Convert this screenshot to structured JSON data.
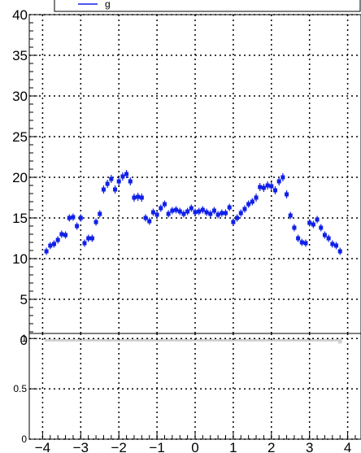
{
  "legend": {
    "text": "g"
  },
  "chart_data": [
    {
      "type": "scatter",
      "title": "",
      "xlabel": "",
      "ylabel": "",
      "xlim": [
        -4.35,
        4.35
      ],
      "ylim": [
        0,
        40
      ],
      "grid": true,
      "color": "#1020e8",
      "xticks": [
        -4,
        -3,
        -2,
        -1,
        0,
        1,
        2,
        3,
        4
      ],
      "xtick_labels": [
        "−4",
        "−3",
        "−2",
        "−1",
        "0",
        "1",
        "2",
        "3",
        "4"
      ],
      "yticks": [
        0,
        5,
        10,
        15,
        20,
        25,
        30,
        35,
        40
      ],
      "ytick_labels": [
        "0",
        "5",
        "10",
        "15",
        "20",
        "25",
        "30",
        "35",
        "40"
      ],
      "series": [
        {
          "x": [
            -3.9,
            -3.8,
            -3.7,
            -3.6,
            -3.5,
            -3.4,
            -3.3,
            -3.2,
            -3.1,
            -3.0,
            -2.9,
            -2.8,
            -2.7,
            -2.6,
            -2.5,
            -2.4,
            -2.3,
            -2.2,
            -2.1,
            -2.0,
            -1.9,
            -1.8,
            -1.7,
            -1.6,
            -1.5,
            -1.4,
            -1.3,
            -1.2,
            -1.1,
            -1.0,
            -0.9,
            -0.8,
            -0.7,
            -0.6,
            -0.5,
            -0.4,
            -0.3,
            -0.2,
            -0.1,
            0.0,
            0.1,
            0.2,
            0.3,
            0.4,
            0.5,
            0.6,
            0.7,
            0.8,
            0.9,
            1.0,
            1.1,
            1.2,
            1.3,
            1.4,
            1.5,
            1.6,
            1.7,
            1.8,
            1.9,
            2.0,
            2.1,
            2.2,
            2.3,
            2.4,
            2.5,
            2.6,
            2.7,
            2.8,
            2.9,
            3.0,
            3.1,
            3.2,
            3.3,
            3.4,
            3.5,
            3.6,
            3.7,
            3.8
          ],
          "y": [
            10.9,
            11.6,
            11.8,
            12.3,
            13.0,
            12.9,
            15.0,
            15.1,
            14.0,
            15.0,
            11.9,
            12.5,
            12.5,
            14.5,
            15.5,
            18.5,
            19.2,
            19.8,
            18.5,
            19.5,
            20.1,
            20.4,
            19.5,
            17.5,
            17.6,
            17.5,
            15.0,
            14.6,
            15.7,
            15.4,
            16.2,
            16.7,
            15.5,
            15.9,
            16.0,
            15.8,
            15.5,
            15.8,
            16.2,
            15.7,
            15.8,
            16.0,
            15.7,
            15.5,
            15.9,
            15.4,
            15.6,
            15.6,
            16.3,
            14.5,
            15.0,
            15.6,
            16.1,
            16.7,
            17.0,
            17.5,
            18.8,
            18.7,
            19.0,
            18.9,
            18.4,
            19.5,
            20.0,
            17.9,
            15.3,
            13.8,
            12.5,
            12.0,
            11.9,
            14.4,
            14.2,
            14.8,
            13.8,
            12.9,
            12.5,
            11.8,
            11.6,
            10.9
          ],
          "yerr": [
            0.45,
            0.45,
            0.45,
            0.45,
            0.45,
            0.45,
            0.45,
            0.45,
            0.45,
            0.45,
            0.45,
            0.45,
            0.45,
            0.45,
            0.45,
            0.5,
            0.5,
            0.5,
            0.5,
            0.5,
            0.5,
            0.5,
            0.5,
            0.5,
            0.5,
            0.5,
            0.45,
            0.45,
            0.45,
            0.45,
            0.45,
            0.45,
            0.45,
            0.45,
            0.45,
            0.45,
            0.45,
            0.45,
            0.45,
            0.45,
            0.45,
            0.45,
            0.45,
            0.45,
            0.45,
            0.45,
            0.45,
            0.45,
            0.45,
            0.45,
            0.45,
            0.45,
            0.45,
            0.45,
            0.45,
            0.5,
            0.5,
            0.5,
            0.5,
            0.5,
            0.5,
            0.5,
            0.5,
            0.5,
            0.45,
            0.45,
            0.45,
            0.45,
            0.45,
            0.45,
            0.45,
            0.45,
            0.45,
            0.45,
            0.45,
            0.45,
            0.45,
            0.45
          ]
        }
      ]
    },
    {
      "type": "bar",
      "title": "",
      "xlabel": "",
      "ylabel": "",
      "xlim": [
        -4.35,
        4.35
      ],
      "ylim": [
        0,
        1.05
      ],
      "grid": true,
      "color": "#cfcfcf",
      "xticks": [
        -4,
        -3,
        -2,
        -1,
        0,
        1,
        2,
        3,
        4
      ],
      "xtick_labels": [
        "−4",
        "−3",
        "−2",
        "−1",
        "0",
        "1",
        "2",
        "3",
        "4"
      ],
      "yticks": [
        0,
        0.5,
        1
      ],
      "ytick_labels": [
        "0",
        "0.5",
        "1"
      ],
      "x": [
        -3.9,
        -3.8,
        -3.7,
        -3.6,
        -3.5,
        -3.4,
        -3.3,
        -3.2,
        -3.1,
        -3.0,
        -2.9,
        -2.8,
        -2.7,
        -2.6,
        -2.5,
        -2.4,
        -2.3,
        -2.2,
        -2.1,
        -2.0,
        -1.9,
        -1.8,
        -1.7,
        -1.6,
        -1.5,
        -1.4,
        -1.3,
        -1.2,
        -1.1,
        -1.0,
        -0.9,
        -0.8,
        -0.7,
        -0.6,
        -0.5,
        -0.4,
        -0.3,
        -0.2,
        -0.1,
        0.0,
        0.1,
        0.2,
        0.3,
        0.4,
        0.5,
        0.6,
        0.7,
        0.8,
        0.9,
        1.0,
        1.1,
        1.2,
        1.3,
        1.4,
        1.5,
        1.6,
        1.7,
        1.8,
        1.9,
        2.0,
        2.1,
        2.2,
        2.3,
        2.4,
        2.5,
        2.6,
        2.7,
        2.8,
        2.9,
        3.0,
        3.1,
        3.2,
        3.3,
        3.4,
        3.5,
        3.6,
        3.7,
        3.8
      ],
      "band_low": [
        0.97,
        0.97,
        0.97,
        0.97,
        0.97,
        0.97,
        0.97,
        0.97,
        0.97,
        0.97,
        0.97,
        0.97,
        0.97,
        0.97,
        0.97,
        0.97,
        0.97,
        0.97,
        0.97,
        0.97,
        0.97,
        0.97,
        0.97,
        0.97,
        0.97,
        0.97,
        0.97,
        0.97,
        0.97,
        0.97,
        0.97,
        0.97,
        0.97,
        0.97,
        0.97,
        0.97,
        0.97,
        0.97,
        0.97,
        0.97,
        0.97,
        0.97,
        0.97,
        0.97,
        0.97,
        0.97,
        0.97,
        0.97,
        0.97,
        0.97,
        0.97,
        0.97,
        0.97,
        0.97,
        0.97,
        0.97,
        0.97,
        0.97,
        0.97,
        0.97,
        0.97,
        0.97,
        0.97,
        0.97,
        0.97,
        0.97,
        0.97,
        0.97,
        0.97,
        0.97,
        0.97,
        0.97,
        0.97,
        0.97,
        0.97,
        0.97,
        0.97,
        0.95
      ],
      "band_high": [
        0.995,
        0.995,
        0.995,
        0.995,
        0.995,
        0.995,
        0.995,
        0.995,
        0.995,
        0.995,
        0.995,
        0.995,
        0.995,
        0.995,
        0.995,
        0.995,
        0.995,
        0.995,
        0.995,
        0.995,
        0.995,
        0.995,
        0.995,
        0.995,
        0.995,
        0.995,
        0.995,
        0.995,
        0.995,
        0.995,
        0.995,
        0.995,
        0.995,
        0.995,
        0.995,
        0.995,
        0.995,
        0.995,
        0.995,
        0.995,
        0.995,
        0.995,
        0.995,
        0.995,
        0.995,
        0.995,
        0.995,
        0.995,
        0.995,
        0.995,
        0.995,
        0.995,
        0.995,
        0.995,
        0.995,
        0.995,
        0.995,
        0.995,
        0.995,
        0.995,
        0.995,
        0.995,
        0.995,
        0.995,
        0.995,
        0.995,
        0.995,
        0.995,
        0.995,
        0.995,
        0.995,
        0.995,
        0.995,
        0.995,
        0.995,
        0.995,
        0.995,
        0.995
      ]
    }
  ]
}
